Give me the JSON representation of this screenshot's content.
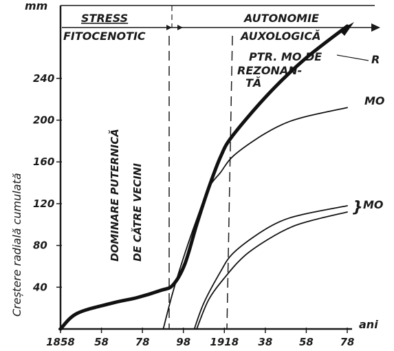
{
  "chart_data": {
    "type": "line",
    "y_unit": "mm",
    "x_unit": "ani",
    "ylabel": "Creștere radială cumulată",
    "x_ticks": [
      "1858",
      "58",
      "78",
      "98",
      "1918",
      "38",
      "58",
      "78"
    ],
    "y_ticks": [
      "40",
      "80",
      "120",
      "160",
      "200",
      "240"
    ],
    "ylim": [
      0,
      290
    ],
    "xlim": [
      1858,
      1978
    ],
    "phases": {
      "stress": [
        "STRESS",
        "FITOCENOTIC"
      ],
      "autonomy": [
        "AUTONOMIE",
        "AUXOLOGICĂ"
      ]
    },
    "vertical_note": [
      "DOMINARE PUTERNICĂ",
      "DE CĂTRE VECINI"
    ],
    "annotation": [
      "PTR. MO DE",
      "REZONAN-",
      "TĂ"
    ],
    "series": [
      {
        "name": "R",
        "style": "thick",
        "points": [
          [
            1858,
            0
          ],
          [
            1865,
            15
          ],
          [
            1880,
            25
          ],
          [
            1890,
            30
          ],
          [
            1900,
            37
          ],
          [
            1905,
            42
          ],
          [
            1910,
            62
          ],
          [
            1915,
            100
          ],
          [
            1920,
            135
          ],
          [
            1925,
            165
          ],
          [
            1930,
            185
          ],
          [
            1945,
            225
          ],
          [
            1960,
            258
          ],
          [
            1978,
            290
          ]
        ]
      },
      {
        "name": "MO",
        "style": "thin",
        "points": [
          [
            1901,
            0
          ],
          [
            1905,
            35
          ],
          [
            1910,
            72
          ],
          [
            1915,
            105
          ],
          [
            1920,
            135
          ],
          [
            1925,
            150
          ],
          [
            1930,
            165
          ],
          [
            1940,
            182
          ],
          [
            1950,
            195
          ],
          [
            1960,
            203
          ],
          [
            1978,
            212
          ]
        ]
      },
      {
        "name": "MO",
        "style": "thin",
        "points": [
          [
            1914,
            0
          ],
          [
            1918,
            25
          ],
          [
            1925,
            55
          ],
          [
            1930,
            72
          ],
          [
            1940,
            90
          ],
          [
            1950,
            103
          ],
          [
            1960,
            110
          ],
          [
            1978,
            118
          ]
        ]
      },
      {
        "name": "MO",
        "style": "thin",
        "points": [
          [
            1915,
            0
          ],
          [
            1920,
            28
          ],
          [
            1927,
            50
          ],
          [
            1935,
            70
          ],
          [
            1945,
            86
          ],
          [
            1955,
            98
          ],
          [
            1965,
            105
          ],
          [
            1978,
            112
          ]
        ]
      }
    ]
  }
}
